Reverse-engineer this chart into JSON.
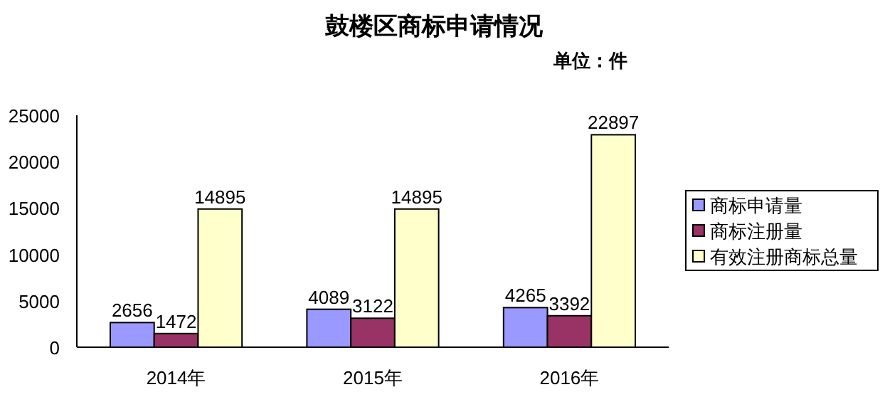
{
  "chart_data": {
    "type": "bar",
    "title": "鼓楼区商标申请情况",
    "subtitle": "单位：件",
    "categories": [
      "2014年",
      "2015年",
      "2016年"
    ],
    "series": [
      {
        "name": "商标申请量",
        "color": "#9999ff",
        "values": [
          2656,
          4089,
          4265
        ]
      },
      {
        "name": "商标注册量",
        "color": "#993366",
        "values": [
          1472,
          3122,
          3392
        ]
      },
      {
        "name": "有效注册商标总量",
        "color": "#ffffcc",
        "values": [
          14895,
          14895,
          22897
        ]
      }
    ],
    "ylim": [
      0,
      25000
    ],
    "yticks": [
      0,
      5000,
      10000,
      15000,
      20000,
      25000
    ],
    "grid": false,
    "legend": "right",
    "data_labels": true
  }
}
